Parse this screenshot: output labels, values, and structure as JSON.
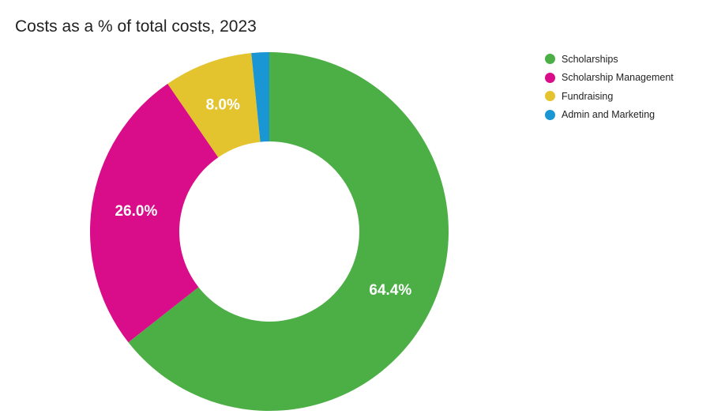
{
  "chart_data": {
    "type": "pie",
    "variant": "donut",
    "title": "Costs as a % of total costs, 2023",
    "legend_position": "top-right",
    "categories": [
      "Scholarships",
      "Scholarship Management",
      "Fundraising",
      "Admin and Marketing"
    ],
    "values": [
      64.4,
      26.0,
      8.0,
      1.6
    ],
    "data_labels": [
      "64.4%",
      "26.0%",
      "8.0%",
      ""
    ],
    "colors": [
      "#4caf45",
      "#d90c8a",
      "#e3c42f",
      "#1a96d4"
    ]
  }
}
